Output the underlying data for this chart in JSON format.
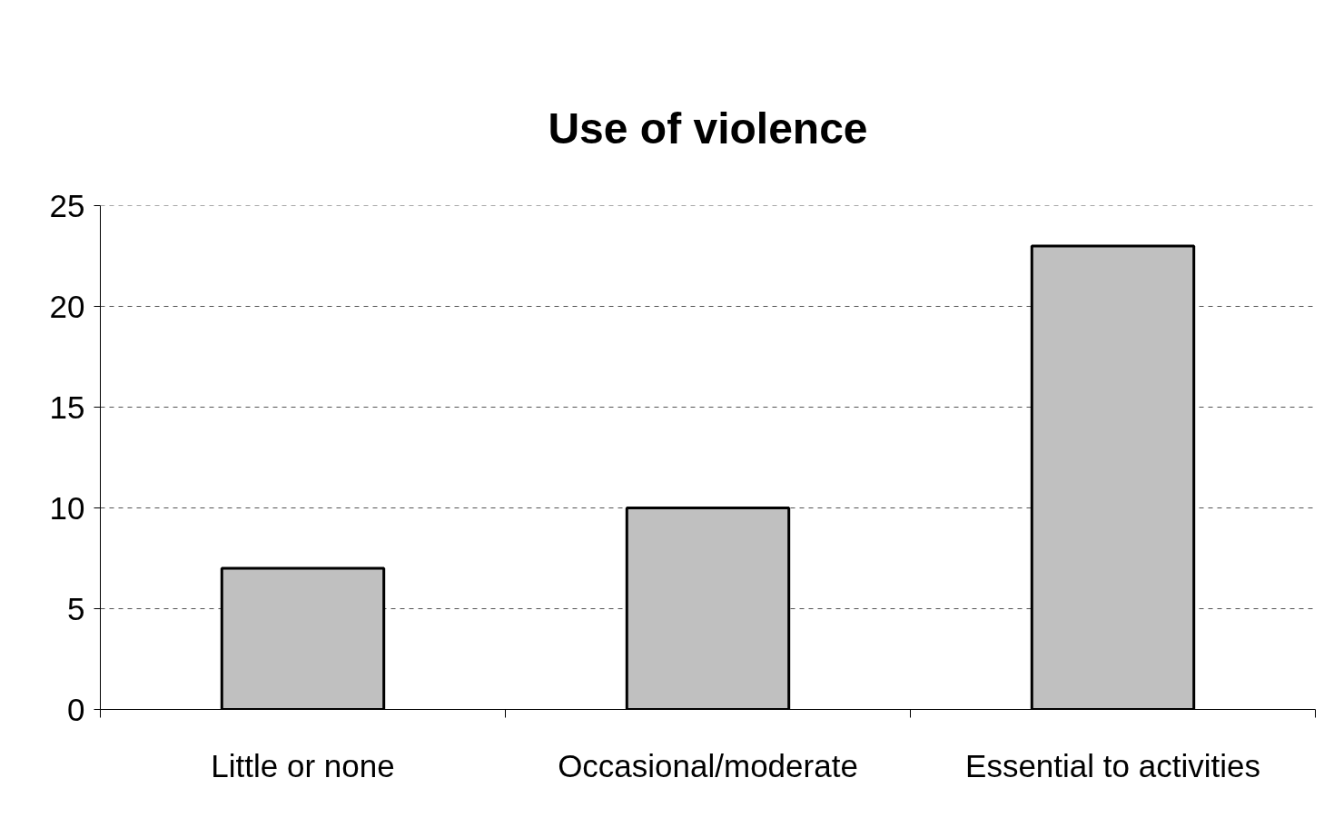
{
  "chart_data": {
    "type": "bar",
    "title": "Use of violence",
    "categories": [
      "Little or none",
      "Occasional/moderate",
      "Essential to activities"
    ],
    "values": [
      7,
      10,
      23
    ],
    "color": "#c0c0c0",
    "ylim": [
      0,
      25
    ],
    "yticks": [
      0,
      5,
      10,
      15,
      20,
      25
    ],
    "grid": "y"
  }
}
